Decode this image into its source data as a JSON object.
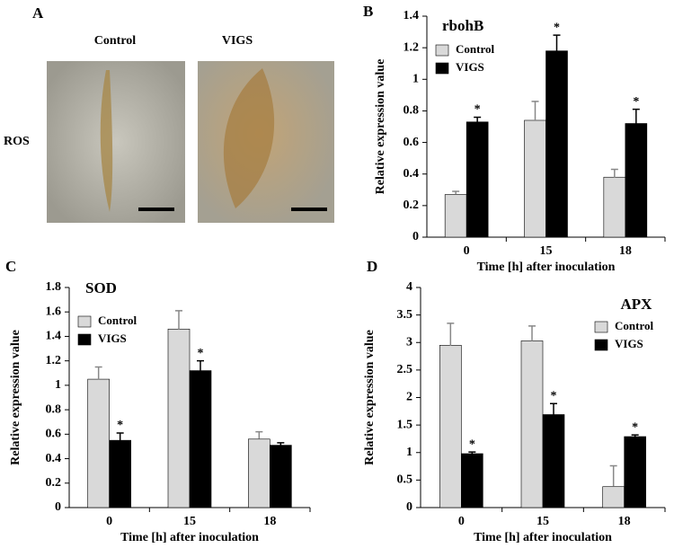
{
  "panel_a": {
    "label": "A",
    "columns": [
      "Control",
      "VIGS"
    ],
    "row": "ROS"
  },
  "chart_data": [
    {
      "type": "bar",
      "label": "B",
      "title": "rbohB",
      "xlabel": "Time [h] after inoculation",
      "ylabel": "Relative expression value",
      "categories": [
        "0",
        "15",
        "18"
      ],
      "legend": "upper left",
      "series": [
        {
          "name": "Control",
          "color": "#d9d9d9",
          "values": [
            0.27,
            0.74,
            0.38
          ],
          "errors": [
            0.02,
            0.12,
            0.05
          ],
          "markers": [
            null,
            null,
            null
          ]
        },
        {
          "name": "VIGS",
          "color": "#000000",
          "values": [
            0.73,
            1.18,
            0.72
          ],
          "errors": [
            0.03,
            0.1,
            0.09
          ],
          "markers": [
            "*",
            "*",
            "*"
          ]
        }
      ],
      "ylim": [
        0,
        1.4
      ],
      "yticks": [
        0,
        0.2,
        0.4,
        0.6,
        0.8,
        1,
        1.2,
        1.4
      ]
    },
    {
      "type": "bar",
      "label": "C",
      "title": "SOD",
      "xlabel": "Time [h] after inoculation",
      "ylabel": "Relative expression value",
      "categories": [
        "0",
        "15",
        "18"
      ],
      "legend": "upper left",
      "series": [
        {
          "name": "Control",
          "color": "#d9d9d9",
          "values": [
            1.05,
            1.46,
            0.56
          ],
          "errors": [
            0.1,
            0.15,
            0.06
          ],
          "markers": [
            null,
            null,
            null
          ]
        },
        {
          "name": "VIGS",
          "color": "#000000",
          "values": [
            0.55,
            1.12,
            0.51
          ],
          "errors": [
            0.06,
            0.08,
            0.02
          ],
          "markers": [
            "*",
            "*",
            null
          ]
        }
      ],
      "ylim": [
        0,
        1.8
      ],
      "yticks": [
        0,
        0.2,
        0.4,
        0.6,
        0.8,
        1,
        1.2,
        1.4,
        1.6,
        1.8
      ]
    },
    {
      "type": "bar",
      "label": "D",
      "title": "APX",
      "xlabel": "Time [h] after inoculation",
      "ylabel": "Relative expression value",
      "categories": [
        "0",
        "15",
        "18"
      ],
      "legend": "upper right",
      "series": [
        {
          "name": "Control",
          "color": "#d9d9d9",
          "values": [
            2.95,
            3.03,
            0.38
          ],
          "errors": [
            0.4,
            0.27,
            0.38
          ],
          "markers": [
            null,
            null,
            null
          ]
        },
        {
          "name": "VIGS",
          "color": "#000000",
          "values": [
            0.98,
            1.69,
            1.29
          ],
          "errors": [
            0.03,
            0.2,
            0.03
          ],
          "markers": [
            "*",
            "*",
            "*"
          ]
        }
      ],
      "ylim": [
        0,
        4
      ],
      "yticks": [
        0,
        0.5,
        1,
        1.5,
        2,
        2.5,
        3,
        3.5,
        4
      ]
    }
  ]
}
